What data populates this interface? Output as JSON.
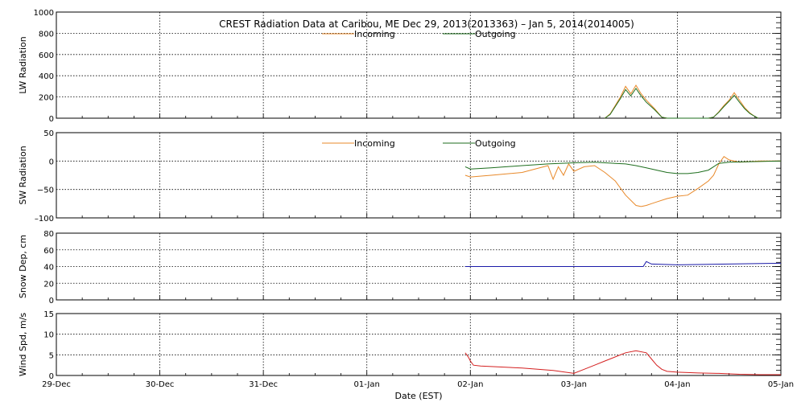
{
  "chart_data": {
    "type": "line",
    "title": "CREST Radiation Data at Caribou, ME   Dec 29, 2013(2013363) – Jan  5, 2014(2014005)",
    "xlabel": "Date (EST)",
    "xlim": [
      0,
      7
    ],
    "x_ticks": [
      {
        "x": 0,
        "label": "29-Dec"
      },
      {
        "x": 1,
        "label": "30-Dec"
      },
      {
        "x": 2,
        "label": "31-Dec"
      },
      {
        "x": 3,
        "label": "01-Jan"
      },
      {
        "x": 4,
        "label": "02-Jan"
      },
      {
        "x": 5,
        "label": "03-Jan"
      },
      {
        "x": 6,
        "label": "04-Jan"
      },
      {
        "x": 7,
        "label": "05-Jan"
      }
    ],
    "panels": [
      {
        "id": "lw",
        "ylabel": "LW Radiation",
        "ylim": [
          0,
          1000
        ],
        "yticks": [
          0,
          200,
          400,
          600,
          800,
          1000
        ],
        "ytick_labels": [
          "0",
          "200",
          "400",
          "600",
          "800",
          "1000"
        ],
        "grid": true,
        "legend": {
          "placement": "top-center"
        },
        "series": [
          {
            "name": "Incoming",
            "color": "#e8892a",
            "x": [
              5.3,
              5.35,
              5.4,
              5.45,
              5.5,
              5.55,
              5.6,
              5.65,
              5.7,
              5.78,
              5.85,
              5.9,
              5.95,
              6.3,
              6.35,
              6.4,
              6.45,
              6.5,
              6.55,
              6.6,
              6.65,
              6.7,
              6.75,
              6.78
            ],
            "y": [
              0,
              40,
              120,
              200,
              300,
              230,
              310,
              230,
              170,
              90,
              10,
              0,
              0,
              0,
              10,
              60,
              120,
              170,
              240,
              170,
              100,
              50,
              15,
              0
            ]
          },
          {
            "name": "Outgoing",
            "color": "#1e6e1e",
            "x": [
              5.3,
              5.35,
              5.4,
              5.45,
              5.5,
              5.55,
              5.6,
              5.65,
              5.7,
              5.78,
              5.85,
              5.9,
              5.95,
              6.3,
              6.35,
              6.4,
              6.45,
              6.5,
              6.55,
              6.6,
              6.65,
              6.7,
              6.75,
              6.78
            ],
            "y": [
              0,
              35,
              110,
              185,
              270,
              210,
              280,
              210,
              150,
              80,
              10,
              0,
              0,
              0,
              10,
              55,
              110,
              160,
              215,
              150,
              90,
              45,
              15,
              0
            ]
          }
        ]
      },
      {
        "id": "sw",
        "ylabel": "SW Radiation",
        "ylim": [
          -100,
          50
        ],
        "yticks": [
          -100,
          -50,
          0,
          50
        ],
        "ytick_labels": [
          "–100",
          "−50",
          "0",
          "50"
        ],
        "grid": true,
        "legend": {
          "placement": "top-center"
        },
        "series": [
          {
            "name": "Incoming",
            "color": "#e8892a",
            "x": [
              3.95,
              4.0,
              4.2,
              4.5,
              4.75,
              4.8,
              4.85,
              4.9,
              4.95,
              5.0,
              5.1,
              5.2,
              5.3,
              5.4,
              5.5,
              5.6,
              5.65,
              5.7,
              5.75,
              5.8,
              5.9,
              6.0,
              6.1,
              6.2,
              6.3,
              6.35,
              6.4,
              6.45,
              6.5,
              6.6,
              6.8,
              7.0
            ],
            "y": [
              -25,
              -28,
              -25,
              -20,
              -8,
              -32,
              -10,
              -25,
              -5,
              -18,
              -10,
              -8,
              -20,
              -35,
              -60,
              -78,
              -80,
              -78,
              -75,
              -72,
              -66,
              -62,
              -60,
              -48,
              -35,
              -25,
              -5,
              8,
              2,
              -2,
              0,
              0
            ]
          },
          {
            "name": "Outgoing",
            "color": "#1e6e1e",
            "x": [
              3.95,
              4.0,
              4.2,
              4.5,
              4.75,
              5.0,
              5.2,
              5.3,
              5.4,
              5.5,
              5.6,
              5.7,
              5.8,
              5.9,
              6.0,
              6.1,
              6.2,
              6.3,
              6.35,
              6.4,
              6.5,
              7.0
            ],
            "y": [
              -10,
              -14,
              -12,
              -8,
              -5,
              -3,
              -2,
              -3,
              -4,
              -5,
              -8,
              -12,
              -16,
              -20,
              -22,
              -22,
              -20,
              -16,
              -10,
              -4,
              -2,
              0
            ]
          }
        ]
      },
      {
        "id": "snow",
        "ylabel": "Snow Dep, cm",
        "ylim": [
          0,
          80
        ],
        "yticks": [
          0,
          20,
          40,
          60,
          80
        ],
        "ytick_labels": [
          "0",
          "20",
          "40",
          "60",
          "80"
        ],
        "grid": true,
        "series": [
          {
            "color": "#1a1aa8",
            "x": [
              3.95,
              5.0,
              5.6,
              5.67,
              5.7,
              5.75,
              6.0,
              6.5,
              7.0
            ],
            "y": [
              40,
              40,
              40,
              40,
              46,
              43,
              42,
              43,
              44
            ]
          }
        ]
      },
      {
        "id": "wind",
        "ylabel": "Wind Spd, m/s",
        "ylim": [
          0,
          15
        ],
        "yticks": [
          0,
          5,
          10,
          15
        ],
        "ytick_labels": [
          "0",
          "5",
          "10",
          "15"
        ],
        "grid": true,
        "series": [
          {
            "color": "#d42020",
            "x": [
              3.95,
              3.98,
              4.0,
              4.03,
              4.1,
              4.5,
              4.8,
              5.0,
              5.1,
              5.2,
              5.3,
              5.4,
              5.5,
              5.6,
              5.7,
              5.75,
              5.8,
              5.85,
              5.9,
              6.0,
              6.2,
              6.4,
              6.6,
              6.8,
              7.0
            ],
            "y": [
              5.5,
              4.5,
              3.5,
              2.5,
              2.3,
              1.8,
              1.2,
              0.5,
              1.5,
              2.5,
              3.5,
              4.5,
              5.5,
              6.0,
              5.5,
              4.0,
              2.5,
              1.5,
              1.0,
              0.8,
              0.6,
              0.5,
              0.3,
              0.2,
              0.2
            ]
          }
        ]
      }
    ]
  }
}
